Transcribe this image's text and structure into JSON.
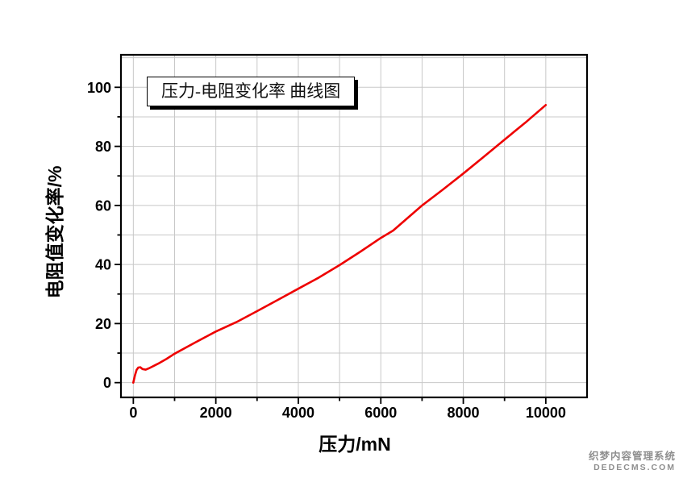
{
  "chart_data": {
    "type": "line",
    "title": "压力-电阻变化率 曲线图",
    "xlabel": "压力/mN",
    "ylabel": "电阻值变化率/%",
    "xlim": [
      -300,
      11000
    ],
    "ylim": [
      -5,
      111
    ],
    "x_major_ticks": [
      0,
      2000,
      4000,
      6000,
      8000,
      10000
    ],
    "x_minor_step": 1000,
    "y_major_ticks": [
      0,
      20,
      40,
      60,
      80,
      100
    ],
    "y_minor_step": 10,
    "grid": "on",
    "legend": "none",
    "line_color": "#ee0000",
    "axis_color": "#000000",
    "grid_color": "#c8c8c8",
    "series": [
      {
        "name": "压力-电阻变化率",
        "x": [
          0,
          40,
          80,
          120,
          170,
          220,
          300,
          400,
          600,
          800,
          1000,
          1500,
          2000,
          2500,
          3000,
          3500,
          4000,
          4500,
          5000,
          5500,
          6000,
          6300,
          7000,
          7500,
          8000,
          8500,
          9000,
          9500,
          10000
        ],
        "y": [
          0,
          2.5,
          4.3,
          5.1,
          5.2,
          4.6,
          4.4,
          5.0,
          6.4,
          8.0,
          9.8,
          13.6,
          17.3,
          20.5,
          24.2,
          28.0,
          31.8,
          35.6,
          39.8,
          44.3,
          49.0,
          51.5,
          60.0,
          65.3,
          70.8,
          76.5,
          82.3,
          88.0,
          94.0
        ]
      }
    ]
  },
  "watermark": {
    "line1": "织梦内容管理系统",
    "line2": "DEDECMS.COM"
  }
}
